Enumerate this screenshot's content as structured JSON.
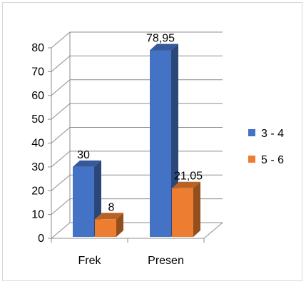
{
  "chart_data": {
    "type": "bar",
    "categories": [
      "Frek",
      "Presen"
    ],
    "series": [
      {
        "name": "3 - 4",
        "values": [
          30,
          78.95
        ],
        "labels": [
          "30",
          "78,95"
        ],
        "color": "#4472C4"
      },
      {
        "name": "5 - 6",
        "values": [
          8,
          21.05
        ],
        "labels": [
          "8",
          "21,05"
        ],
        "color": "#ED7D31"
      }
    ],
    "y_ticks": [
      "0",
      "10",
      "20",
      "30",
      "40",
      "50",
      "60",
      "70",
      "80"
    ],
    "ylim": [
      0,
      80
    ],
    "grid": true,
    "style": "3d-clustered-column",
    "legend_position": "right"
  }
}
